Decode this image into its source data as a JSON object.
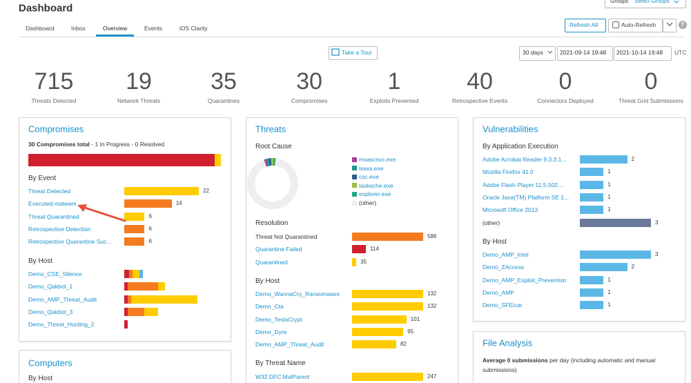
{
  "header": {
    "title": "Dashboard",
    "groups_label": "Groups",
    "groups_select": "Select Groups",
    "help": "?"
  },
  "tabs": [
    "Dashboard",
    "Inbox",
    "Overview",
    "Events",
    "iOS Clarity"
  ],
  "active_tab": 2,
  "buttons": {
    "refresh": "Refresh All",
    "auto_refresh": "Auto-Refresh"
  },
  "tour": "Take a Tour",
  "range": {
    "period": "30 days",
    "start": "2021-09-14 19:48",
    "end": "2021-10-14 19:48",
    "timezone": "UTC"
  },
  "stats": [
    {
      "value": 715,
      "label": "Threats Detected"
    },
    {
      "value": 19,
      "label": "Network Threats"
    },
    {
      "value": 35,
      "label": "Quarantines"
    },
    {
      "value": 30,
      "label": "Compromises"
    },
    {
      "value": 1,
      "label": "Exploits Prevented"
    },
    {
      "value": 40,
      "label": "Retrospective Events"
    },
    {
      "value": 0,
      "label": "Connectors Deployed"
    },
    {
      "value": 0,
      "label": "Threat Grid Submissions"
    }
  ],
  "compromises": {
    "title": "Compromises",
    "summary": {
      "total": 30,
      "total_label": "Compromises total",
      "separator": "-",
      "in_progress": 1,
      "in_progress_label": "In Progress",
      "resolved": 0,
      "resolved_label": "Resolved",
      "colors": [
        "#d0202e",
        "#ffcc00"
      ]
    },
    "by_event": {
      "title": "By Event",
      "rows": [
        {
          "label": "Threat Detected",
          "value": 22,
          "color": "#ffcc00"
        },
        {
          "label": "Executed malware",
          "value": 14,
          "color": "#f47b20"
        },
        {
          "label": "Threat Quarantined",
          "value": 6,
          "color": "#ffcc00"
        },
        {
          "label": "Retrospective Detection",
          "value": 6,
          "color": "#f47b20"
        },
        {
          "label": "Retrospective Quarantine Suc...",
          "value": 6,
          "color": "#f47b20"
        }
      ]
    },
    "by_host": {
      "title": "By Host",
      "rows": [
        {
          "label": "Demo_CSE_Silence",
          "segments": [
            {
              "value": 1.5,
              "color": "#d0202e"
            },
            {
              "value": 1,
              "color": "#f47b20"
            },
            {
              "value": 2,
              "color": "#ffcc00"
            },
            {
              "value": 1,
              "color": "#5bb8e6"
            }
          ]
        },
        {
          "label": "Demo_Qakbot_1",
          "segments": [
            {
              "value": 1,
              "color": "#d0202e"
            },
            {
              "value": 9,
              "color": "#f47b20"
            },
            {
              "value": 2,
              "color": "#ffcc00"
            }
          ]
        },
        {
          "label": "Demo_AMP_Threat_Audit",
          "segments": [
            {
              "value": 1,
              "color": "#d0202e"
            },
            {
              "value": 1,
              "color": "#f47b20"
            },
            {
              "value": 19.5,
              "color": "#ffcc00"
            }
          ]
        },
        {
          "label": "Demo_Qakbot_3",
          "segments": [
            {
              "value": 1,
              "color": "#d0202e"
            },
            {
              "value": 5,
              "color": "#f47b20"
            },
            {
              "value": 4,
              "color": "#ffcc00"
            }
          ]
        },
        {
          "label": "Demo_Threat_Hunting_2",
          "segments": [
            {
              "value": 1,
              "color": "#d0202e"
            }
          ]
        }
      ]
    }
  },
  "threats": {
    "title": "Threats",
    "root_cause": {
      "title": "Root Cause",
      "slices": [
        {
          "label": "msascsvc.exe",
          "value": 1.5,
          "color": "#a23d9c"
        },
        {
          "label": "lsass.exe",
          "value": 1.5,
          "color": "#1a9a8a"
        },
        {
          "label": "csc.exe",
          "value": 1.5,
          "color": "#2d5f8f"
        },
        {
          "label": "tasksche.exe",
          "value": 1.5,
          "color": "#9fbf3a"
        },
        {
          "label": "explorer.exe",
          "value": 1.5,
          "color": "#22a884"
        },
        {
          "label": "(other)",
          "value": 92.5,
          "color": "#eeeeee"
        }
      ]
    },
    "resolution": {
      "title": "Resolution",
      "rows": [
        {
          "label": "Threat Not Quarantined",
          "value": 586,
          "color": "#f47b20",
          "link": false
        },
        {
          "label": "Quarantine Failed",
          "value": 114,
          "color": "#d0202e"
        },
        {
          "label": "Quarantined",
          "value": 35,
          "color": "#ffcc00"
        }
      ]
    },
    "by_host": {
      "title": "By Host",
      "rows": [
        {
          "label": "Demo_WannaCry_Ransomware",
          "value": 132,
          "color": "#ffcc00"
        },
        {
          "label": "Demo_Cta",
          "value": 132,
          "color": "#ffcc00"
        },
        {
          "label": "Demo_TeslaCrypt",
          "value": 101,
          "color": "#ffcc00"
        },
        {
          "label": "Demo_Dyre",
          "value": 95,
          "color": "#ffcc00"
        },
        {
          "label": "Demo_AMP_Threat_Audit",
          "value": 82,
          "color": "#ffcc00"
        }
      ]
    },
    "by_threat_name": {
      "title": "By Threat Name",
      "rows": [
        {
          "label": "W32.DFC.MalParent",
          "value": 247,
          "color": "#ffcc00"
        }
      ]
    }
  },
  "vulnerabilities": {
    "title": "Vulnerabilities",
    "by_application": {
      "title": "By Application Execution",
      "rows": [
        {
          "label": "Adobe Acrobat Reader 9.3.3.1...",
          "value": 2,
          "color": "#5bb8e6"
        },
        {
          "label": "Mozilla Firefox 41.0",
          "value": 1,
          "color": "#5bb8e6"
        },
        {
          "label": "Adobe Flash Player 11.5.502....",
          "value": 1,
          "color": "#5bb8e6"
        },
        {
          "label": "Oracle Java(TM) Platform SE 1...",
          "value": 1,
          "color": "#5bb8e6"
        },
        {
          "label": "Microsoft Office 2013",
          "value": 1,
          "color": "#5bb8e6"
        },
        {
          "label": "(other)",
          "value": 3,
          "color": "#6b7a99",
          "link": false
        }
      ]
    },
    "by_host": {
      "title": "By Host",
      "rows": [
        {
          "label": "Demo_AMP_Intel",
          "value": 3,
          "color": "#5bb8e6"
        },
        {
          "label": "Demo_ZAccess",
          "value": 2,
          "color": "#5bb8e6"
        },
        {
          "label": "Demo_AMP_Exploit_Prevention",
          "value": 1,
          "color": "#5bb8e6"
        },
        {
          "label": "Demo_AMP",
          "value": 1,
          "color": "#5bb8e6"
        },
        {
          "label": "Demo_SFEicar",
          "value": 1,
          "color": "#5bb8e6"
        }
      ]
    }
  },
  "file_analysis": {
    "title": "File Analysis",
    "lead": "Average 0 submissions",
    "text": " per day (including automatic and manual submissions)"
  },
  "computers": {
    "title": "Computers",
    "by_host": "By Host"
  }
}
